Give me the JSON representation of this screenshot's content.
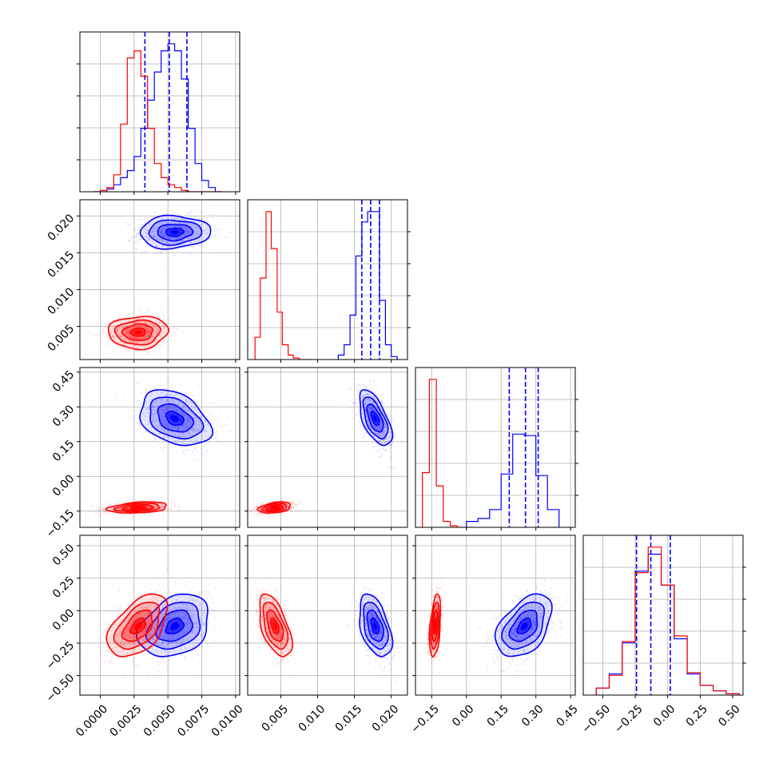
{
  "chart_data": {
    "type": "corner",
    "grid": true,
    "parameters": [
      {
        "range": [
          -0.0015,
          0.0103
        ],
        "ticks": [
          0.0,
          0.0025,
          0.005,
          0.0075,
          0.01
        ],
        "tick_labels": [
          "0.0000",
          "0.0025",
          "0.0050",
          "0.0075",
          "0.0100"
        ]
      },
      {
        "range": [
          0.0005,
          0.0222
        ],
        "ticks": [
          0.005,
          0.01,
          0.015,
          0.02
        ],
        "tick_labels": [
          "0.005",
          "0.010",
          "0.015",
          "0.020"
        ]
      },
      {
        "range": [
          -0.22,
          0.47
        ],
        "ticks": [
          -0.15,
          0.0,
          0.15,
          0.3,
          0.45
        ],
        "tick_labels": [
          "−0.15",
          "0.00",
          "0.15",
          "0.30",
          "0.45"
        ]
      },
      {
        "range": [
          -0.65,
          0.58
        ],
        "ticks": [
          -0.5,
          -0.25,
          0.0,
          0.25,
          0.5
        ],
        "tick_labels": [
          "−0.50",
          "−0.25",
          "0.00",
          "0.25",
          "0.50"
        ]
      }
    ],
    "series": [
      {
        "color": "#0000ff",
        "means": [
          0.0055,
          0.0178,
          0.25,
          -0.12
        ],
        "sigmas": [
          0.0013,
          0.0011,
          0.06,
          0.12
        ],
        "correlations": {
          "0-1": 0.05,
          "0-2": -0.35,
          "0-3": 0.3,
          "1-2": -0.6,
          "1-3": -0.45,
          "2-3": 0.45
        },
        "quantiles": [
          [
            0.0033,
            0.0051,
            0.0064
          ],
          [
            0.016,
            0.0172,
            0.0184
          ],
          [
            0.185,
            0.255,
            0.31
          ],
          [
            -0.24,
            -0.13,
            0.02
          ]
        ],
        "histograms": [
          {
            "bins": [
              -0.0005,
              0.0,
              0.0005,
              0.001,
              0.0015,
              0.002,
              0.0025,
              0.003,
              0.0035,
              0.004,
              0.0045,
              0.005,
              0.0055,
              0.006,
              0.0065,
              0.007,
              0.0075,
              0.008,
              0.0085,
              0.009
            ],
            "counts": [
              0,
              0,
              2,
              5,
              10,
              15,
              25,
              45,
              65,
              85,
              100,
              105,
              100,
              80,
              45,
              20,
              8,
              3,
              0
            ]
          },
          {
            "bins": [
              0.0128,
              0.0136,
              0.0144,
              0.0152,
              0.016,
              0.0168,
              0.0176,
              0.0184,
              0.0192,
              0.02,
              0.0208
            ],
            "counts": [
              3,
              10,
              30,
              70,
              93,
              100,
              100,
              40,
              10,
              2
            ]
          },
          {
            "bins": [
              0.0,
              0.05,
              0.1,
              0.15,
              0.2,
              0.25,
              0.3,
              0.35,
              0.4
            ],
            "counts": [
              4,
              6,
              12,
              36,
              63,
              62,
              35,
              12
            ]
          },
          {
            "bins": [
              -0.55,
              -0.45,
              -0.35,
              -0.25,
              -0.15,
              -0.05,
              0.05,
              0.15,
              0.25,
              0.35,
              0.45,
              0.55
            ],
            "counts": [
              5,
              15,
              37,
              88,
              100,
              78,
              40,
              15,
              7,
              3,
              1
            ]
          }
        ]
      },
      {
        "color": "#ff0000",
        "means": [
          0.0028,
          0.0042,
          -0.135,
          -0.12
        ],
        "sigmas": [
          0.0011,
          0.0011,
          0.012,
          0.12
        ],
        "correlations": {
          "0-1": 0.05,
          "0-2": 0.3,
          "0-3": 0.5,
          "1-2": 0.35,
          "1-3": -0.55,
          "2-3": 0.4
        },
        "histograms": [
          {
            "bins": [
              -0.0005,
              0.0,
              0.0005,
              0.001,
              0.0015,
              0.002,
              0.0025,
              0.003,
              0.0035,
              0.004,
              0.0045,
              0.005,
              0.0055,
              0.006,
              0.0065,
              0.007,
              0.0075,
              0.008,
              0.0085,
              0.009
            ],
            "counts": [
              0,
              1,
              3,
              12,
              48,
              95,
              100,
              82,
              45,
              20,
              10,
              5,
              3,
              1,
              0,
              0,
              0,
              0,
              0
            ]
          },
          {
            "bins": [
              0.0015,
              0.0022,
              0.003,
              0.0037,
              0.0045,
              0.0052,
              0.006,
              0.0067,
              0.0075,
              0.0082,
              0.009
            ],
            "counts": [
              15,
              55,
              100,
              75,
              32,
              10,
              3,
              1,
              0,
              0
            ]
          },
          {
            "bins": [
              -0.19,
              -0.16,
              -0.13,
              -0.1,
              -0.07,
              -0.04,
              -0.01,
              0.02
            ],
            "counts": [
              37,
              100,
              28,
              4,
              1,
              0,
              0
            ]
          },
          {
            "bins": [
              -0.55,
              -0.45,
              -0.35,
              -0.25,
              -0.15,
              -0.05,
              0.05,
              0.15,
              0.25,
              0.35,
              0.45,
              0.55
            ],
            "counts": [
              5,
              14,
              38,
              87,
              105,
              78,
              42,
              16,
              7,
              3,
              1
            ]
          }
        ]
      }
    ]
  }
}
